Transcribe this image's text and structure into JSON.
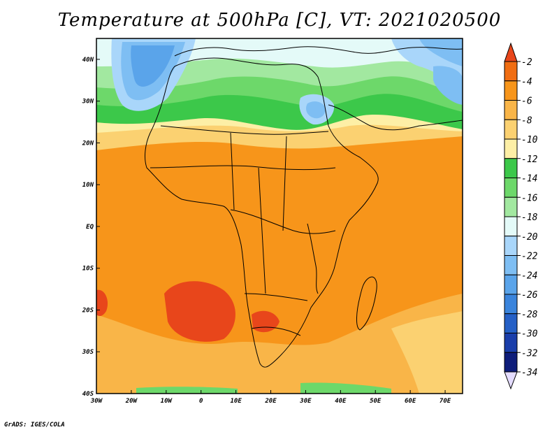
{
  "title": "Temperature at 500hPa [C], VT: 2021020500",
  "credit": "GrADS: IGES/COLA",
  "map": {
    "lon_range": [
      -30,
      75
    ],
    "lat_range": [
      -40,
      45
    ],
    "lon_ticks": [
      {
        "lon": -30,
        "label": "30W"
      },
      {
        "lon": -20,
        "label": "20W"
      },
      {
        "lon": -10,
        "label": "10W"
      },
      {
        "lon": 0,
        "label": "0"
      },
      {
        "lon": 10,
        "label": "10E"
      },
      {
        "lon": 20,
        "label": "20E"
      },
      {
        "lon": 30,
        "label": "30E"
      },
      {
        "lon": 40,
        "label": "40E"
      },
      {
        "lon": 50,
        "label": "50E"
      },
      {
        "lon": 60,
        "label": "60E"
      },
      {
        "lon": 70,
        "label": "70E"
      }
    ],
    "lat_ticks": [
      {
        "lat": 40,
        "label": "40N"
      },
      {
        "lat": 30,
        "label": "30N"
      },
      {
        "lat": 20,
        "label": "20N"
      },
      {
        "lat": 10,
        "label": "10N"
      },
      {
        "lat": 0,
        "label": "EQ"
      },
      {
        "lat": -10,
        "label": "10S"
      },
      {
        "lat": -20,
        "label": "20S"
      },
      {
        "lat": -30,
        "label": "30S"
      },
      {
        "lat": -40,
        "label": "40S"
      }
    ]
  },
  "colorbar": {
    "levels": [
      "-2",
      "-4",
      "-6",
      "-8",
      "-10",
      "-12",
      "-14",
      "-16",
      "-18",
      "-20",
      "-22",
      "-24",
      "-26",
      "-28",
      "-30",
      "-32",
      "-34"
    ],
    "colors": [
      "#e8461b",
      "#f06d12",
      "#f7951a",
      "#f9b548",
      "#fbd171",
      "#fdefa6",
      "#3cc84a",
      "#6dd86a",
      "#a2e8a0",
      "#e4faf8",
      "#a9d6fa",
      "#7ebef3",
      "#5aa4ea",
      "#3a84dc",
      "#2560c6",
      "#1a3eaa",
      "#0e1d7a"
    ],
    "top_arrow_color": "#e8461b",
    "bottom_arrow_color": "#e4dcff"
  }
}
